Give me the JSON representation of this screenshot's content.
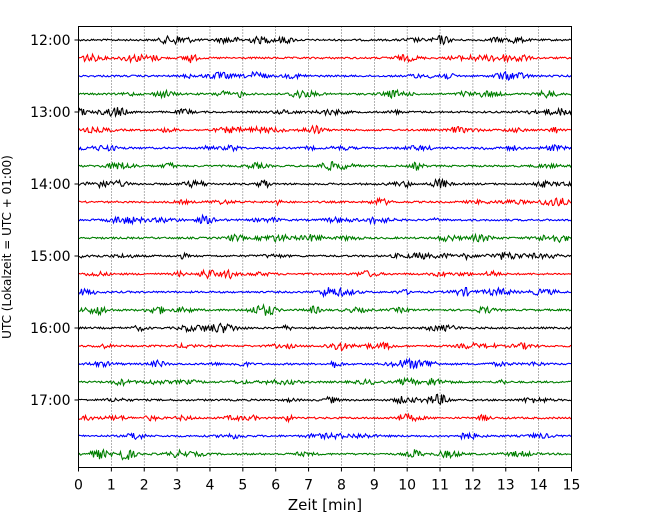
{
  "chart_data": {
    "type": "line",
    "xlabel": "Zeit  [min]",
    "ylabel": "UTC (Lokalzeit = UTC + 01:00)",
    "xlim": [
      0,
      15
    ],
    "x_ticks": [
      0,
      1,
      2,
      3,
      4,
      5,
      6,
      7,
      8,
      9,
      10,
      11,
      12,
      13,
      14,
      15
    ],
    "y_tick_labels": [
      "12:00",
      "13:00",
      "14:00",
      "15:00",
      "16:00",
      "17:00"
    ],
    "grid": "vertical dotted",
    "trace_colors": [
      "#000000",
      "#ff0000",
      "#0000ff",
      "#007f00"
    ],
    "traces": [
      {
        "start": "12:00"
      },
      {
        "start": "12:15"
      },
      {
        "start": "12:30"
      },
      {
        "start": "12:45"
      },
      {
        "start": "13:00"
      },
      {
        "start": "13:15"
      },
      {
        "start": "13:30"
      },
      {
        "start": "13:45"
      },
      {
        "start": "14:00"
      },
      {
        "start": "14:15"
      },
      {
        "start": "14:30"
      },
      {
        "start": "14:45"
      },
      {
        "start": "15:00"
      },
      {
        "start": "15:15"
      },
      {
        "start": "15:30"
      },
      {
        "start": "15:45"
      },
      {
        "start": "16:00"
      },
      {
        "start": "16:15"
      },
      {
        "start": "16:30"
      },
      {
        "start": "16:45"
      },
      {
        "start": "17:00"
      },
      {
        "start": "17:15"
      },
      {
        "start": "17:30"
      },
      {
        "start": "17:45"
      }
    ]
  }
}
